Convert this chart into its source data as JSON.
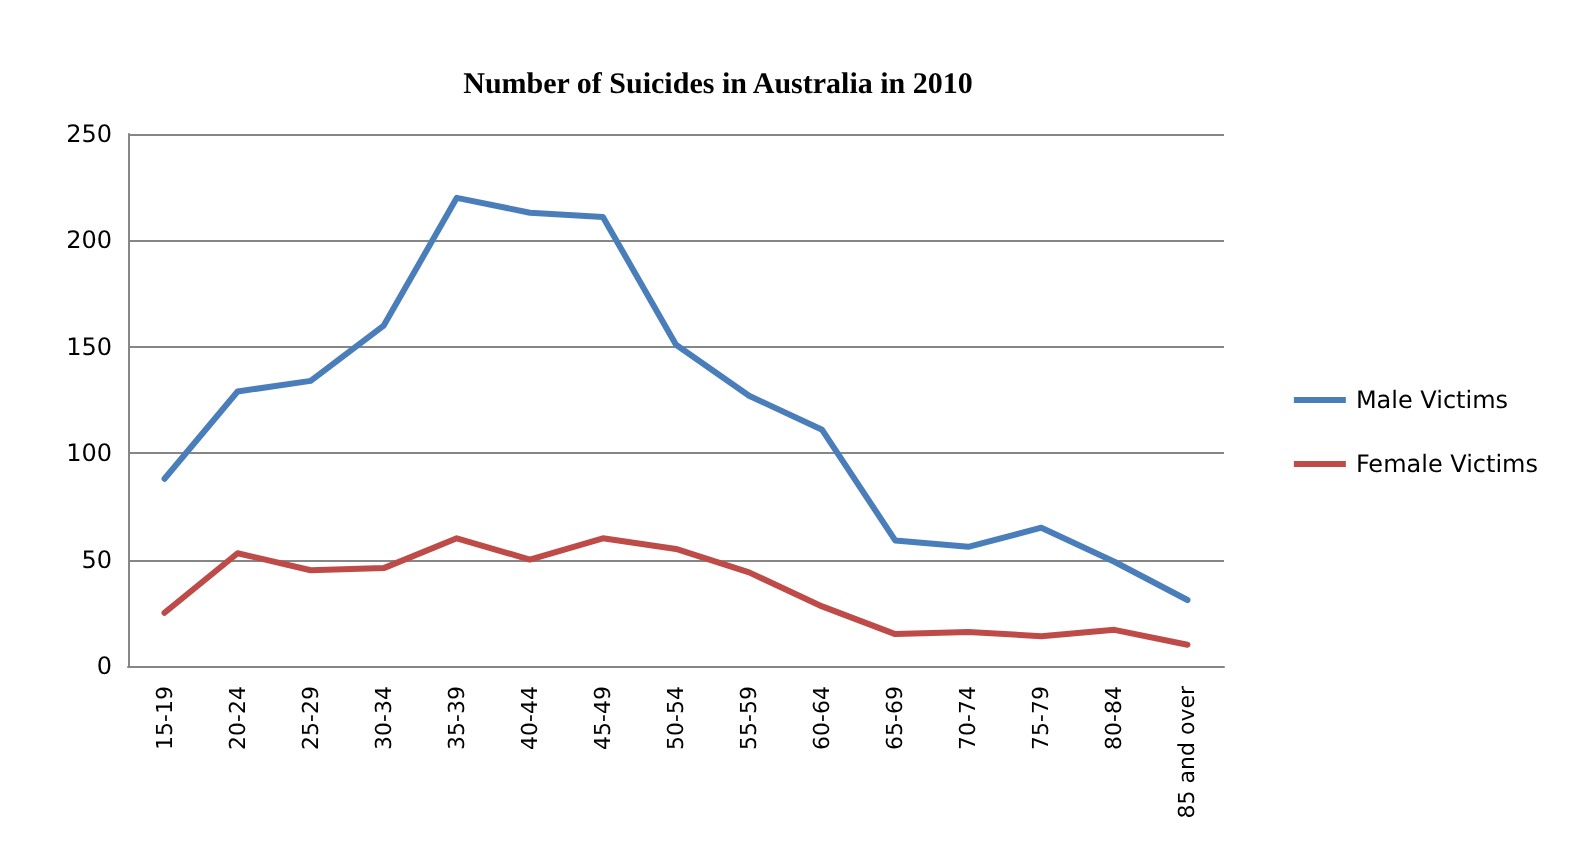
{
  "chart_data": {
    "type": "line",
    "title": "Number of Suicides in Australia in 2010",
    "categories": [
      "15-19",
      "20-24",
      "25-29",
      "30-34",
      "35-39",
      "40-44",
      "45-49",
      "50-54",
      "55-59",
      "60-64",
      "65-69",
      "70-74",
      "75-79",
      "80-84",
      "85 and over"
    ],
    "series": [
      {
        "name": "Male Victims",
        "color": "#4a7ebb",
        "values": [
          88,
          129,
          134,
          160,
          220,
          213,
          211,
          151,
          127,
          111,
          59,
          56,
          65,
          49,
          31
        ]
      },
      {
        "name": "Female Victims",
        "color": "#be4b48",
        "values": [
          25,
          53,
          45,
          46,
          60,
          50,
          60,
          55,
          44,
          28,
          15,
          16,
          14,
          17,
          10
        ]
      }
    ],
    "ylim": [
      0,
      250
    ],
    "yticks": [
      0,
      50,
      100,
      150,
      200,
      250
    ],
    "grid": "y",
    "legend": "right",
    "marker": "none",
    "line_style": "solid"
  }
}
